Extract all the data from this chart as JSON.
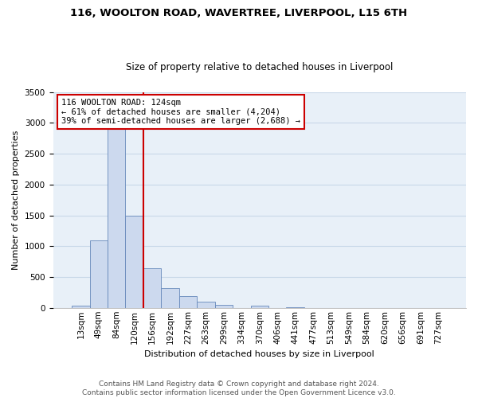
{
  "title": "116, WOOLTON ROAD, WAVERTREE, LIVERPOOL, L15 6TH",
  "subtitle": "Size of property relative to detached houses in Liverpool",
  "xlabel": "Distribution of detached houses by size in Liverpool",
  "ylabel": "Number of detached properties",
  "bin_labels": [
    "13sqm",
    "49sqm",
    "84sqm",
    "120sqm",
    "156sqm",
    "192sqm",
    "227sqm",
    "263sqm",
    "299sqm",
    "334sqm",
    "370sqm",
    "406sqm",
    "441sqm",
    "477sqm",
    "513sqm",
    "549sqm",
    "584sqm",
    "620sqm",
    "656sqm",
    "691sqm",
    "727sqm"
  ],
  "bar_heights": [
    40,
    1100,
    2900,
    1500,
    640,
    320,
    185,
    95,
    50,
    0,
    30,
    0,
    15,
    0,
    0,
    0,
    0,
    0,
    0,
    0,
    0
  ],
  "bar_color": "#ccd9ee",
  "bar_edge_color": "#6688bb",
  "vline_x_index": 3.5,
  "vline_color": "#cc0000",
  "annotation_line1": "116 WOOLTON ROAD: 124sqm",
  "annotation_line2": "← 61% of detached houses are smaller (4,204)",
  "annotation_line3": "39% of semi-detached houses are larger (2,688) →",
  "annotation_box_color": "#ffffff",
  "annotation_box_edge_color": "#cc0000",
  "ylim": [
    0,
    3500
  ],
  "yticks": [
    0,
    500,
    1000,
    1500,
    2000,
    2500,
    3000,
    3500
  ],
  "footer_line1": "Contains HM Land Registry data © Crown copyright and database right 2024.",
  "footer_line2": "Contains public sector information licensed under the Open Government Licence v3.0.",
  "background_color": "#ffffff",
  "plot_bg_color": "#e8f0f8",
  "grid_color": "#c8d8e8",
  "title_fontsize": 9.5,
  "subtitle_fontsize": 8.5,
  "axis_label_fontsize": 8,
  "tick_fontsize": 7.5,
  "annotation_fontsize": 7.5,
  "footer_fontsize": 6.5
}
